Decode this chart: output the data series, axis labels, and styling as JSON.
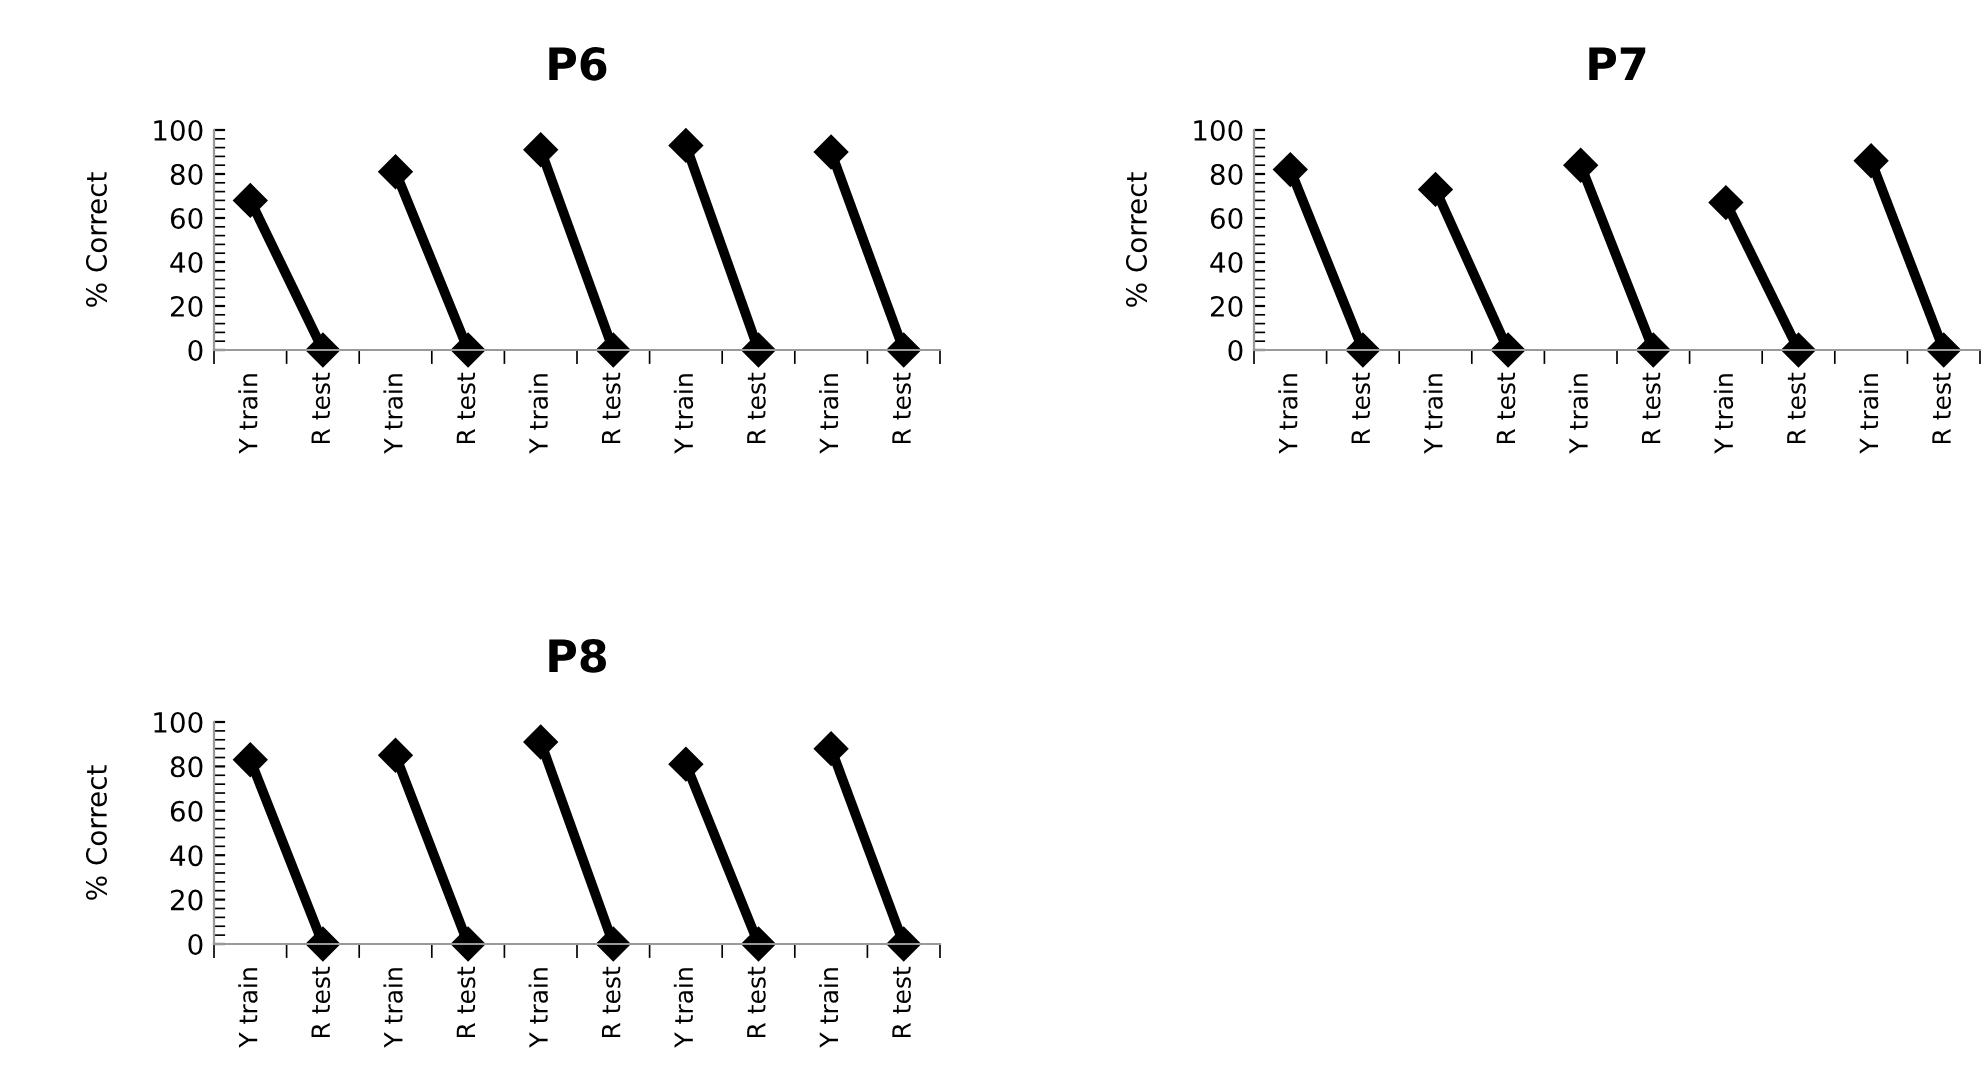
{
  "chart_data": [
    {
      "type": "line",
      "title": "P6",
      "ylabel": "% Correct",
      "categories": [
        "Y train",
        "R test",
        "Y train",
        "R test",
        "Y train",
        "R test",
        "Y train",
        "R test",
        "Y train",
        "R test"
      ],
      "ylim": [
        0,
        100
      ],
      "yticks": [
        0,
        20,
        40,
        60,
        80,
        100
      ],
      "marker": "diamond",
      "line_style": "solid",
      "series": [
        {
          "color": "#000000",
          "values": [
            68,
            0,
            null,
            null,
            null,
            null,
            null,
            null,
            null,
            null
          ]
        },
        {
          "color": "#000000",
          "values": [
            null,
            null,
            81,
            0,
            null,
            null,
            null,
            null,
            null,
            null
          ]
        },
        {
          "color": "#000000",
          "values": [
            null,
            null,
            null,
            null,
            91,
            0,
            null,
            null,
            null,
            null
          ]
        },
        {
          "color": "#000000",
          "values": [
            null,
            null,
            null,
            null,
            null,
            null,
            93,
            0,
            null,
            null
          ]
        },
        {
          "color": "#000000",
          "values": [
            null,
            null,
            null,
            null,
            null,
            null,
            null,
            null,
            90,
            0
          ]
        }
      ]
    },
    {
      "type": "line",
      "title": "P7",
      "ylabel": "% Correct",
      "categories": [
        "Y train",
        "R test",
        "Y train",
        "R test",
        "Y train",
        "R test",
        "Y train",
        "R test",
        "Y train",
        "R test"
      ],
      "ylim": [
        0,
        100
      ],
      "yticks": [
        0,
        20,
        40,
        60,
        80,
        100
      ],
      "marker": "diamond",
      "line_style": "solid",
      "series": [
        {
          "color": "#000000",
          "values": [
            82,
            0,
            null,
            null,
            null,
            null,
            null,
            null,
            null,
            null
          ]
        },
        {
          "color": "#000000",
          "values": [
            null,
            null,
            73,
            0,
            null,
            null,
            null,
            null,
            null,
            null
          ]
        },
        {
          "color": "#000000",
          "values": [
            null,
            null,
            null,
            null,
            84,
            0,
            null,
            null,
            null,
            null
          ]
        },
        {
          "color": "#000000",
          "values": [
            null,
            null,
            null,
            null,
            null,
            null,
            67,
            0,
            null,
            null
          ]
        },
        {
          "color": "#000000",
          "values": [
            null,
            null,
            null,
            null,
            null,
            null,
            null,
            null,
            86,
            0
          ]
        }
      ]
    },
    {
      "type": "line",
      "title": "P8",
      "ylabel": "% Correct",
      "categories": [
        "Y train",
        "R test",
        "Y train",
        "R test",
        "Y train",
        "R test",
        "Y train",
        "R test",
        "Y train",
        "R test"
      ],
      "ylim": [
        0,
        100
      ],
      "yticks": [
        0,
        20,
        40,
        60,
        80,
        100
      ],
      "marker": "diamond",
      "line_style": "solid",
      "series": [
        {
          "color": "#000000",
          "values": [
            83,
            0,
            null,
            null,
            null,
            null,
            null,
            null,
            null,
            null
          ]
        },
        {
          "color": "#000000",
          "values": [
            null,
            null,
            85,
            0,
            null,
            null,
            null,
            null,
            null,
            null
          ]
        },
        {
          "color": "#000000",
          "values": [
            null,
            null,
            null,
            null,
            91,
            0,
            null,
            null,
            null,
            null
          ]
        },
        {
          "color": "#000000",
          "values": [
            null,
            null,
            null,
            null,
            null,
            null,
            81,
            0,
            null,
            null
          ]
        },
        {
          "color": "#000000",
          "values": [
            null,
            null,
            null,
            null,
            null,
            null,
            null,
            null,
            88,
            0
          ]
        }
      ]
    }
  ]
}
